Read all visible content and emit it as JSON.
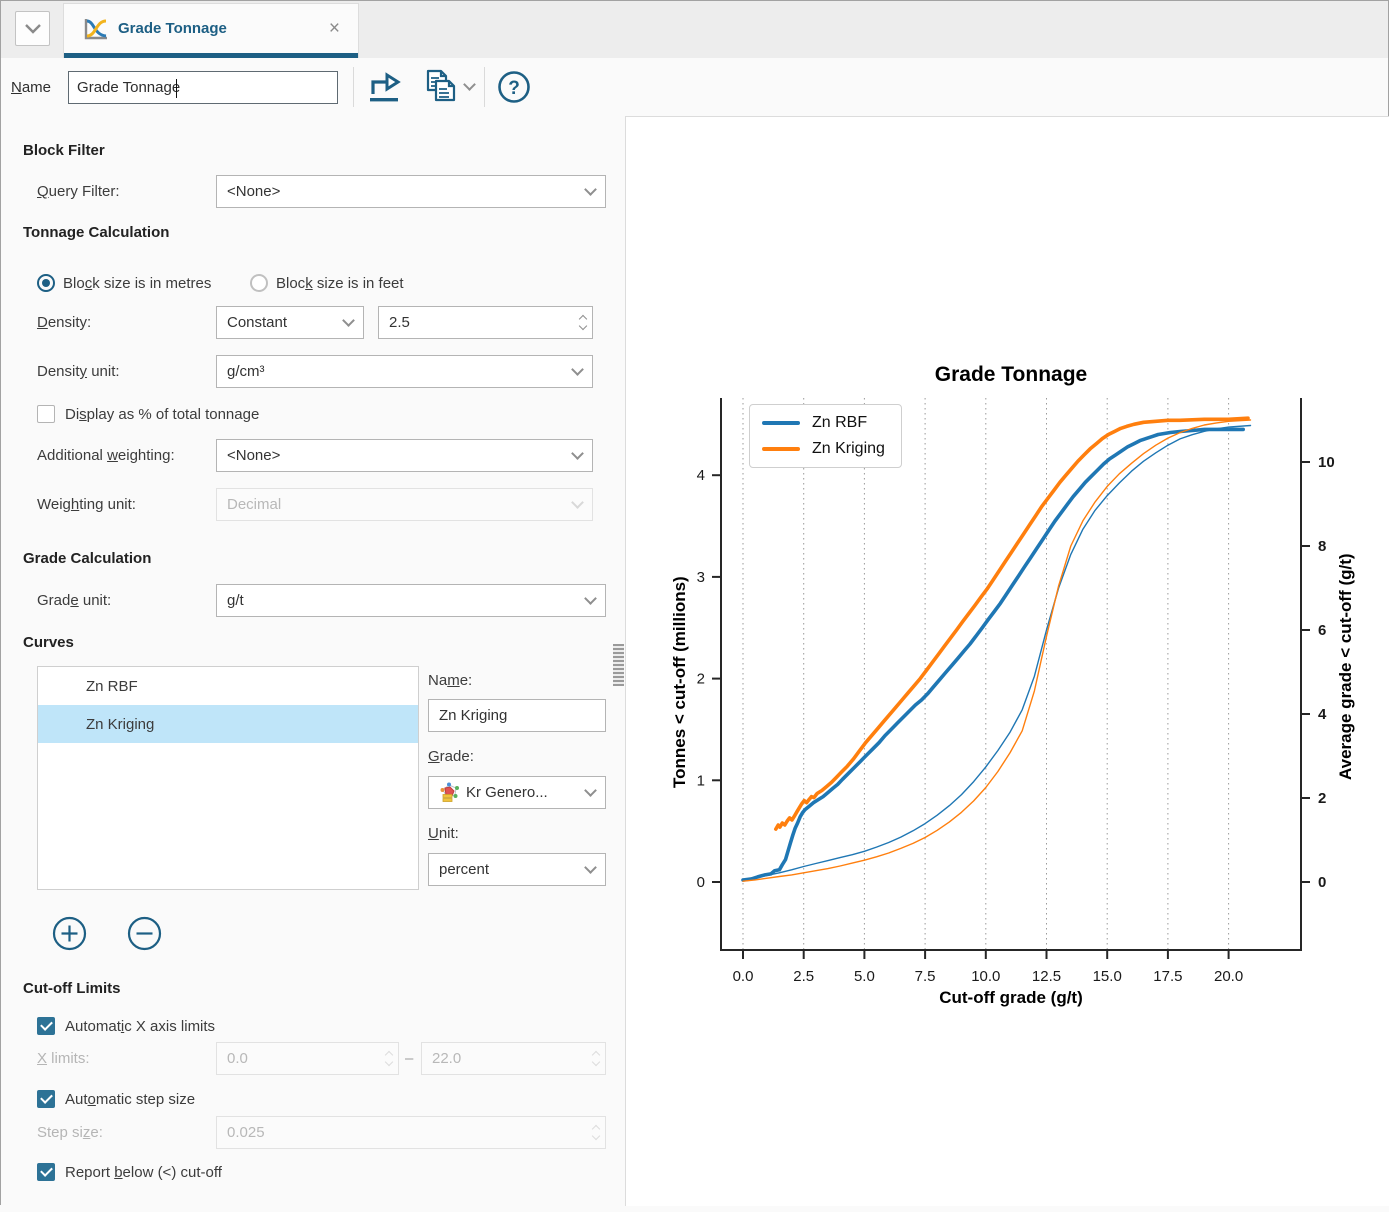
{
  "tab_bar": {
    "tab_title": "Grade Tonnage",
    "close_glyph": "×"
  },
  "toolbar": {
    "name_label": "_Name",
    "name_value": "Grade Tonnage",
    "help_glyph": "?"
  },
  "form": {
    "block_filter": {
      "header": "Block Filter",
      "query_filter_label": "_Query Filter:",
      "query_filter_value": "<None>"
    },
    "tonnage": {
      "header": "Tonnage Calculation",
      "radio_metres_label": "Blo_ck size is in metres",
      "radio_feet_label": "Bloc_k size is in feet",
      "density_label": "_Density:",
      "density_mode_value": "Constant",
      "density_value": "2.5",
      "density_unit_label": "Densit_y unit:",
      "density_unit_value": "g/cm³",
      "display_pct_label": "Di_splay as % of total tonnage",
      "additional_weighting_label": "Additional _weighting:",
      "additional_weighting_value": "<None>",
      "weighting_unit_label": "Weig_hting unit:",
      "weighting_unit_value": "Decimal"
    },
    "grade_calc": {
      "header": "Grade Calculation",
      "grade_unit_label": "Grad_e unit:",
      "grade_unit_value": "g/t"
    },
    "curves": {
      "header": "Curves",
      "items": [
        {
          "label": "Zn RBF"
        },
        {
          "label": "Zn Kriging"
        }
      ],
      "selected_item": "Zn Kriging",
      "name_label": "Na_me:",
      "name_value": "Zn Kriging",
      "grade_label": "_Grade:",
      "grade_value": "Kr Genero...",
      "unit_label": "_Unit:",
      "unit_value": "percent"
    },
    "cutoff": {
      "header": "Cut-off Limits",
      "auto_x_label": "Automat_ic X axis limits",
      "x_limits_label": "_X limits:",
      "x_min_value": "0.0",
      "range_dash": "–",
      "x_max_value": "22.0",
      "auto_step_label": "Aut_omatic step size",
      "step_label": "Step si_ze:",
      "step_value": "0.025",
      "report_below_label": "Report _below (<) cut-off"
    }
  },
  "chart_data": {
    "type": "line",
    "title": "Grade Tonnage",
    "xlabel": "Cut-off grade (g/t)",
    "ylabel_left": "Tonnes < cut-off (millions)",
    "ylabel_right": "Average grade < cut-off (g/t)",
    "xlim": [
      0,
      22
    ],
    "ylim_left": [
      0,
      4.75
    ],
    "ylim_right": [
      0,
      11.5
    ],
    "grid": "vertical-dotted",
    "legend_position": "upper-left",
    "xticks": [
      0,
      2.5,
      5,
      7.5,
      10,
      12.5,
      15,
      17.5,
      20
    ],
    "xtick_labels": [
      "0.0",
      "2.5",
      "5.0",
      "7.5",
      "10.0",
      "12.5",
      "15.0",
      "17.5",
      "20.0"
    ],
    "yticks_left": [
      0,
      1,
      2,
      3,
      4
    ],
    "ytick_left_labels": [
      "0",
      "1",
      "2",
      "3",
      "4"
    ],
    "yticks_right": [
      0,
      2,
      4,
      6,
      8,
      10
    ],
    "ytick_right_labels": [
      "0",
      "2",
      "4",
      "6",
      "8",
      "10"
    ],
    "legend": [
      "Zn RBF",
      "Zn Kriging"
    ],
    "series": [
      {
        "name": "Zn RBF",
        "role": "tonnes",
        "axis": "left",
        "color": "#1f77b4",
        "width": 3.6,
        "points": [
          [
            0,
            0.02
          ],
          [
            0.35,
            0.03
          ],
          [
            0.6,
            0.05
          ],
          [
            0.9,
            0.07
          ],
          [
            1.15,
            0.08
          ],
          [
            1.3,
            0.11
          ],
          [
            1.5,
            0.12
          ],
          [
            1.62,
            0.17
          ],
          [
            1.75,
            0.22
          ],
          [
            1.85,
            0.3
          ],
          [
            1.95,
            0.38
          ],
          [
            2.05,
            0.46
          ],
          [
            2.15,
            0.53
          ],
          [
            2.25,
            0.58
          ],
          [
            2.35,
            0.64
          ],
          [
            2.45,
            0.68
          ],
          [
            2.55,
            0.71
          ],
          [
            2.7,
            0.74
          ],
          [
            2.9,
            0.78
          ],
          [
            3.1,
            0.81
          ],
          [
            3.3,
            0.84
          ],
          [
            3.5,
            0.88
          ],
          [
            3.7,
            0.92
          ],
          [
            3.9,
            0.96
          ],
          [
            4.1,
            1.01
          ],
          [
            4.35,
            1.07
          ],
          [
            4.6,
            1.13
          ],
          [
            4.85,
            1.19
          ],
          [
            5.1,
            1.25
          ],
          [
            5.35,
            1.31
          ],
          [
            5.6,
            1.37
          ],
          [
            5.85,
            1.44
          ],
          [
            6.1,
            1.5
          ],
          [
            6.35,
            1.56
          ],
          [
            6.6,
            1.62
          ],
          [
            6.85,
            1.68
          ],
          [
            7.1,
            1.74
          ],
          [
            7.35,
            1.79
          ],
          [
            7.6,
            1.85
          ],
          [
            7.85,
            1.92
          ],
          [
            8.1,
            1.99
          ],
          [
            8.35,
            2.06
          ],
          [
            8.6,
            2.13
          ],
          [
            8.85,
            2.2
          ],
          [
            9.1,
            2.27
          ],
          [
            9.35,
            2.34
          ],
          [
            9.6,
            2.42
          ],
          [
            9.85,
            2.5
          ],
          [
            10.1,
            2.58
          ],
          [
            10.35,
            2.66
          ],
          [
            10.6,
            2.74
          ],
          [
            10.85,
            2.83
          ],
          [
            11.1,
            2.92
          ],
          [
            11.35,
            3.01
          ],
          [
            11.6,
            3.1
          ],
          [
            11.85,
            3.19
          ],
          [
            12.1,
            3.28
          ],
          [
            12.35,
            3.37
          ],
          [
            12.6,
            3.46
          ],
          [
            12.85,
            3.55
          ],
          [
            13.1,
            3.63
          ],
          [
            13.35,
            3.71
          ],
          [
            13.6,
            3.79
          ],
          [
            13.85,
            3.86
          ],
          [
            14.1,
            3.93
          ],
          [
            14.35,
            3.99
          ],
          [
            14.6,
            4.05
          ],
          [
            14.85,
            4.11
          ],
          [
            15.1,
            4.16
          ],
          [
            15.35,
            4.2
          ],
          [
            15.6,
            4.24
          ],
          [
            15.85,
            4.28
          ],
          [
            16.1,
            4.31
          ],
          [
            16.35,
            4.34
          ],
          [
            16.6,
            4.36
          ],
          [
            16.85,
            4.38
          ],
          [
            17.1,
            4.4
          ],
          [
            17.35,
            4.41
          ],
          [
            17.6,
            4.42
          ],
          [
            18,
            4.43
          ],
          [
            18.5,
            4.44
          ],
          [
            19,
            4.45
          ],
          [
            20,
            4.45
          ],
          [
            20.6,
            4.45
          ]
        ]
      },
      {
        "name": "Zn Kriging",
        "role": "tonnes",
        "axis": "left",
        "color": "#ff7f0e",
        "width": 3.6,
        "points": [
          [
            1.35,
            0.52
          ],
          [
            1.45,
            0.56
          ],
          [
            1.52,
            0.54
          ],
          [
            1.62,
            0.58
          ],
          [
            1.72,
            0.56
          ],
          [
            1.82,
            0.6
          ],
          [
            1.92,
            0.63
          ],
          [
            2.02,
            0.61
          ],
          [
            2.12,
            0.65
          ],
          [
            2.22,
            0.69
          ],
          [
            2.32,
            0.73
          ],
          [
            2.42,
            0.77
          ],
          [
            2.52,
            0.8
          ],
          [
            2.62,
            0.78
          ],
          [
            2.72,
            0.81
          ],
          [
            2.82,
            0.84
          ],
          [
            2.92,
            0.83
          ],
          [
            3.05,
            0.87
          ],
          [
            3.25,
            0.9
          ],
          [
            3.45,
            0.94
          ],
          [
            3.65,
            0.98
          ],
          [
            3.85,
            1.03
          ],
          [
            4.05,
            1.08
          ],
          [
            4.3,
            1.14
          ],
          [
            4.55,
            1.21
          ],
          [
            4.8,
            1.29
          ],
          [
            5.05,
            1.37
          ],
          [
            5.3,
            1.44
          ],
          [
            5.55,
            1.51
          ],
          [
            5.8,
            1.58
          ],
          [
            6.05,
            1.65
          ],
          [
            6.3,
            1.72
          ],
          [
            6.55,
            1.79
          ],
          [
            6.8,
            1.86
          ],
          [
            7.05,
            1.93
          ],
          [
            7.3,
            2.0
          ],
          [
            7.55,
            2.08
          ],
          [
            7.8,
            2.16
          ],
          [
            8.05,
            2.24
          ],
          [
            8.3,
            2.32
          ],
          [
            8.55,
            2.4
          ],
          [
            8.8,
            2.48
          ],
          [
            9.05,
            2.56
          ],
          [
            9.3,
            2.64
          ],
          [
            9.55,
            2.72
          ],
          [
            9.8,
            2.8
          ],
          [
            10.05,
            2.88
          ],
          [
            10.3,
            2.97
          ],
          [
            10.55,
            3.06
          ],
          [
            10.8,
            3.15
          ],
          [
            11.05,
            3.24
          ],
          [
            11.3,
            3.33
          ],
          [
            11.55,
            3.42
          ],
          [
            11.8,
            3.51
          ],
          [
            12.05,
            3.6
          ],
          [
            12.3,
            3.69
          ],
          [
            12.55,
            3.77
          ],
          [
            12.8,
            3.85
          ],
          [
            13.05,
            3.93
          ],
          [
            13.3,
            4.0
          ],
          [
            13.55,
            4.07
          ],
          [
            13.8,
            4.14
          ],
          [
            14.05,
            4.2
          ],
          [
            14.3,
            4.26
          ],
          [
            14.55,
            4.31
          ],
          [
            14.8,
            4.36
          ],
          [
            15.05,
            4.4
          ],
          [
            15.3,
            4.43
          ],
          [
            15.55,
            4.46
          ],
          [
            15.8,
            4.48
          ],
          [
            16.1,
            4.5
          ],
          [
            16.5,
            4.52
          ],
          [
            17,
            4.53
          ],
          [
            17.5,
            4.54
          ],
          [
            18,
            4.54
          ],
          [
            19,
            4.55
          ],
          [
            20,
            4.55
          ],
          [
            20.8,
            4.56
          ]
        ]
      },
      {
        "name": "Zn RBF average grade",
        "role": "average-grade",
        "axis": "right",
        "color": "#1f77b4",
        "width": 1.4,
        "points": [
          [
            0,
            0.05
          ],
          [
            0.5,
            0.1
          ],
          [
            1,
            0.16
          ],
          [
            1.5,
            0.22
          ],
          [
            2,
            0.29
          ],
          [
            2.5,
            0.37
          ],
          [
            3,
            0.44
          ],
          [
            3.5,
            0.51
          ],
          [
            4,
            0.58
          ],
          [
            4.5,
            0.65
          ],
          [
            5,
            0.73
          ],
          [
            5.5,
            0.83
          ],
          [
            6,
            0.94
          ],
          [
            6.5,
            1.07
          ],
          [
            7,
            1.22
          ],
          [
            7.5,
            1.39
          ],
          [
            8,
            1.59
          ],
          [
            8.5,
            1.82
          ],
          [
            9,
            2.08
          ],
          [
            9.5,
            2.39
          ],
          [
            10,
            2.74
          ],
          [
            10.5,
            3.13
          ],
          [
            11,
            3.57
          ],
          [
            11.5,
            4.1
          ],
          [
            12,
            4.9
          ],
          [
            12.5,
            6.0
          ],
          [
            13,
            7.0
          ],
          [
            13.5,
            7.8
          ],
          [
            14,
            8.4
          ],
          [
            14.5,
            8.85
          ],
          [
            15,
            9.2
          ],
          [
            15.5,
            9.5
          ],
          [
            16,
            9.78
          ],
          [
            16.5,
            10.02
          ],
          [
            17,
            10.22
          ],
          [
            17.5,
            10.4
          ],
          [
            18,
            10.55
          ],
          [
            18.5,
            10.65
          ],
          [
            19,
            10.73
          ],
          [
            19.5,
            10.79
          ],
          [
            20,
            10.83
          ],
          [
            20.9,
            10.87
          ]
        ]
      },
      {
        "name": "Zn Kriging average grade",
        "role": "average-grade",
        "axis": "right",
        "color": "#ff7f0e",
        "width": 1.4,
        "points": [
          [
            0,
            0.02
          ],
          [
            0.5,
            0.05
          ],
          [
            1,
            0.09
          ],
          [
            1.5,
            0.13
          ],
          [
            2,
            0.17
          ],
          [
            2.5,
            0.22
          ],
          [
            3,
            0.27
          ],
          [
            3.5,
            0.32
          ],
          [
            4,
            0.38
          ],
          [
            4.5,
            0.45
          ],
          [
            5,
            0.52
          ],
          [
            5.5,
            0.6
          ],
          [
            6,
            0.69
          ],
          [
            6.5,
            0.8
          ],
          [
            7,
            0.92
          ],
          [
            7.5,
            1.06
          ],
          [
            8,
            1.23
          ],
          [
            8.5,
            1.43
          ],
          [
            9,
            1.66
          ],
          [
            9.5,
            1.93
          ],
          [
            10,
            2.25
          ],
          [
            10.5,
            2.63
          ],
          [
            11,
            3.08
          ],
          [
            11.5,
            3.6
          ],
          [
            12,
            4.55
          ],
          [
            12.5,
            5.85
          ],
          [
            13,
            7.05
          ],
          [
            13.5,
            8.0
          ],
          [
            14,
            8.6
          ],
          [
            14.5,
            9.05
          ],
          [
            15,
            9.42
          ],
          [
            15.5,
            9.72
          ],
          [
            16,
            9.97
          ],
          [
            16.5,
            10.2
          ],
          [
            17,
            10.4
          ],
          [
            17.5,
            10.57
          ],
          [
            18,
            10.7
          ],
          [
            18.5,
            10.8
          ],
          [
            19,
            10.88
          ],
          [
            19.5,
            10.93
          ],
          [
            20,
            10.97
          ],
          [
            20.9,
            11.0
          ]
        ]
      }
    ]
  },
  "colors": {
    "accent": "#1d5f84",
    "checkbox": "#2d7296",
    "selection": "#bfe5f9",
    "series_blue": "#1f77b4",
    "series_orange": "#ff7f0e"
  }
}
